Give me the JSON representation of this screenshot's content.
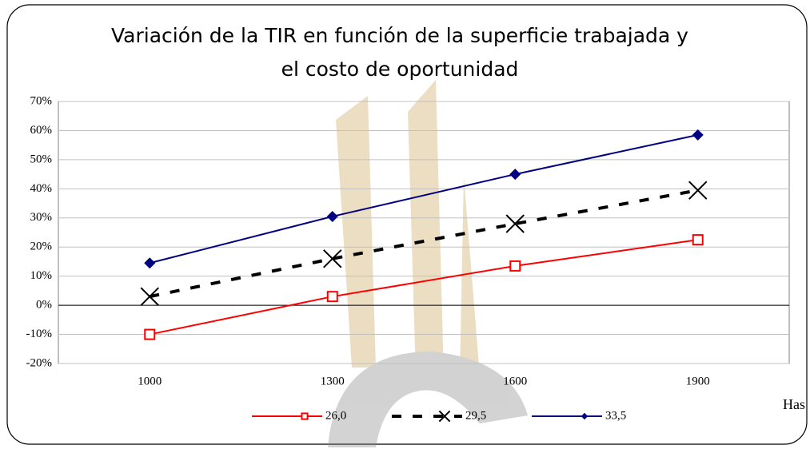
{
  "chart_data": {
    "type": "line",
    "title": [
      "Variación de la TIR en función de la superficie trabajada y",
      "el costo de oportunidad"
    ],
    "x_label": "Has",
    "categories": [
      "1000",
      "1300",
      "1600",
      "1900"
    ],
    "series": [
      {
        "name": "26,0",
        "color": "#ff0000",
        "marker": "square",
        "dash": false,
        "values": [
          -10,
          3,
          13.5,
          22.5
        ]
      },
      {
        "name": "29,5",
        "color": "#000000",
        "marker": "x",
        "dash": true,
        "values": [
          3,
          16,
          28,
          39.5
        ]
      },
      {
        "name": "33,5",
        "color": "#000080",
        "marker": "diamond",
        "dash": false,
        "values": [
          14.5,
          30.5,
          45,
          58.5
        ]
      }
    ],
    "ylim": [
      -20,
      70
    ],
    "yticks": [
      {
        "value": -20,
        "label": "-20%"
      },
      {
        "value": -10,
        "label": "-10%"
      },
      {
        "value": 0,
        "label": "0%"
      },
      {
        "value": 10,
        "label": "10%"
      },
      {
        "value": 20,
        "label": "20%"
      },
      {
        "value": 30,
        "label": "30%"
      },
      {
        "value": 40,
        "label": "40%"
      },
      {
        "value": 50,
        "label": "50%"
      },
      {
        "value": 60,
        "label": "60%"
      },
      {
        "value": 70,
        "label": "70%"
      }
    ],
    "grid": true,
    "legend": "bottom"
  }
}
